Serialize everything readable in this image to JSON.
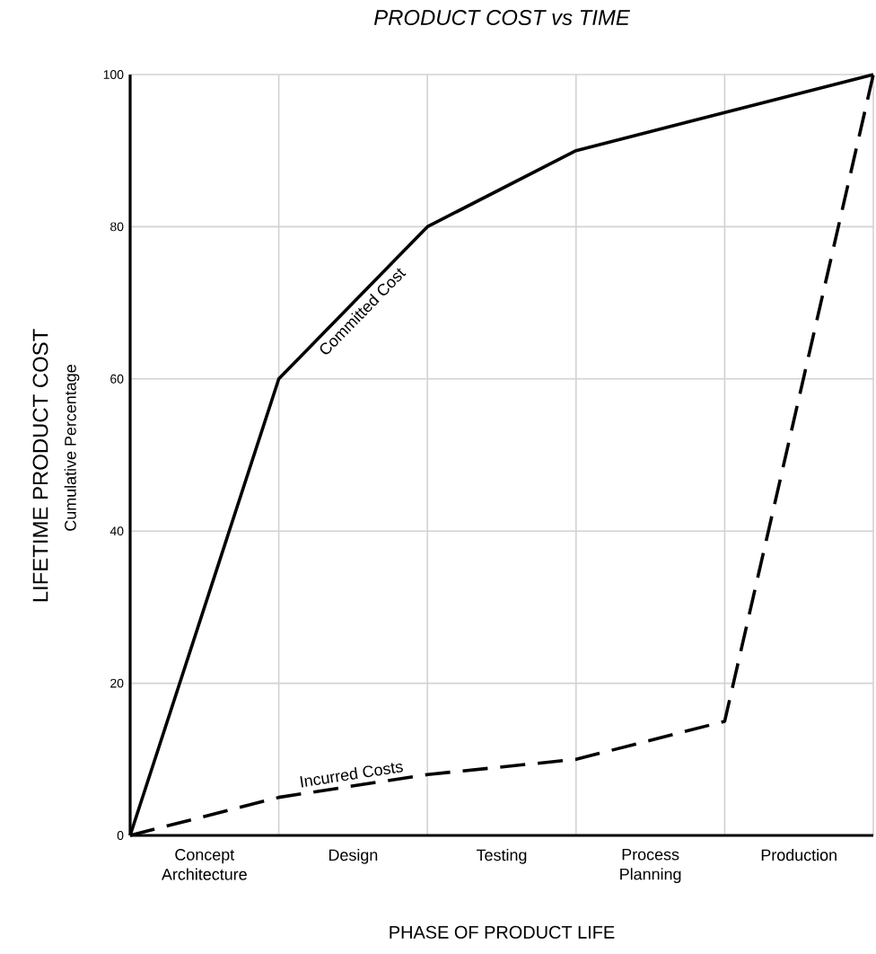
{
  "chart_data": {
    "type": "line",
    "title": "PRODUCT COST vs TIME",
    "xlabel": "PHASE OF PRODUCT LIFE",
    "ylabel": "LIFETIME PRODUCT COST",
    "annotations": [
      "Cumulative Percentage",
      "Concept Architecture",
      "Design",
      "Testing",
      "Process Planning",
      "Production"
    ],
    "categories": [
      null,
      null,
      null,
      null,
      null,
      null
    ],
    "series": [
      {
        "name": "Committed Cost",
        "color": "#000000",
        "line_style": "solid",
        "values": [
          0,
          60,
          80,
          90,
          95,
          100
        ]
      },
      {
        "name": "Incurred Costs",
        "color": "#000000",
        "line_style": "dashed",
        "values": [
          0,
          5,
          8,
          10,
          15,
          100
        ]
      }
    ],
    "ylim": [
      0,
      100
    ],
    "yticks": [
      0,
      20,
      40,
      60,
      80,
      100
    ],
    "grid": true
  }
}
